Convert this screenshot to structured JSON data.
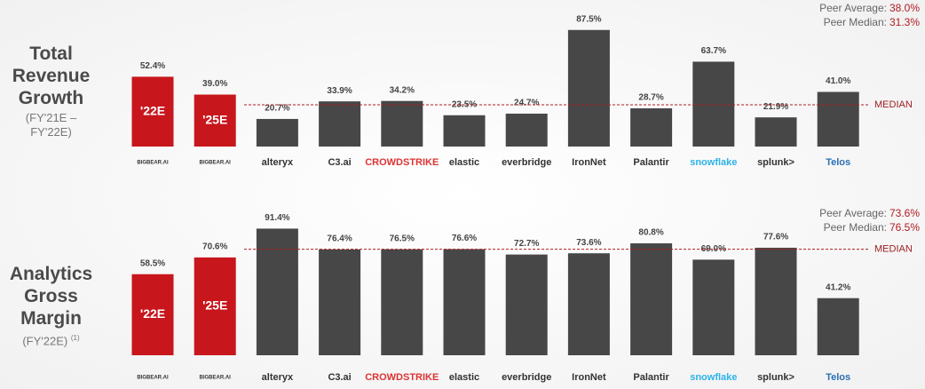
{
  "chart_data": [
    {
      "type": "bar",
      "title": "Total Revenue Growth",
      "subtitle": "(FY'21E – FY'22E)",
      "categories": [
        "BIGBEAR.AI",
        "BIGBEAR.AI",
        "alteryx",
        "C3.ai",
        "CROWDSTRIKE",
        "elastic",
        "everbridge",
        "IronNet",
        "Palantir",
        "snowflake",
        "splunk>",
        "Telos"
      ],
      "values": [
        52.4,
        39.0,
        20.7,
        33.9,
        34.2,
        23.5,
        24.7,
        87.5,
        28.7,
        63.7,
        21.9,
        41.0
      ],
      "value_labels": [
        "52.4%",
        "39.0%",
        "20.7%",
        "33.9%",
        "34.2%",
        "23.5%",
        "24.7%",
        "87.5%",
        "28.7%",
        "63.7%",
        "21.9%",
        "41.0%"
      ],
      "bar_labels": [
        "'22E",
        "'25E",
        null,
        null,
        null,
        null,
        null,
        null,
        null,
        null,
        null,
        null
      ],
      "colors": [
        "#c8161d",
        "#c8161d",
        "#474747",
        "#474747",
        "#474747",
        "#474747",
        "#474747",
        "#474747",
        "#474747",
        "#474747",
        "#474747",
        "#474747"
      ],
      "peer_average": {
        "label": "Peer Average:",
        "value": 38.0,
        "value_label": "38.0%"
      },
      "peer_median": {
        "label": "Peer Median:",
        "value": 31.3,
        "value_label": "31.3%"
      },
      "median_line_label": "MEDIAN"
    },
    {
      "type": "bar",
      "title": "Analytics Gross Margin",
      "subtitle": "(FY'22E)",
      "footnote": "(1)",
      "categories": [
        "BIGBEAR.AI",
        "BIGBEAR.AI",
        "alteryx",
        "C3.ai",
        "CROWDSTRIKE",
        "elastic",
        "everbridge",
        "IronNet",
        "Palantir",
        "snowflake",
        "splunk>",
        "Telos"
      ],
      "values": [
        58.5,
        70.6,
        91.4,
        76.4,
        76.5,
        76.6,
        72.7,
        73.6,
        80.8,
        69.0,
        77.6,
        41.2
      ],
      "value_labels": [
        "58.5%",
        "70.6%",
        "91.4%",
        "76.4%",
        "76.5%",
        "76.6%",
        "72.7%",
        "73.6%",
        "80.8%",
        "69.0%",
        "77.6%",
        "41.2%"
      ],
      "bar_labels": [
        "'22E",
        "'25E",
        null,
        null,
        null,
        null,
        null,
        null,
        null,
        null,
        null,
        null
      ],
      "colors": [
        "#c8161d",
        "#c8161d",
        "#474747",
        "#474747",
        "#474747",
        "#474747",
        "#474747",
        "#474747",
        "#474747",
        "#474747",
        "#474747",
        "#474747"
      ],
      "peer_average": {
        "label": "Peer Average:",
        "value": 73.6,
        "value_label": "73.6%"
      },
      "peer_median": {
        "label": "Peer Median:",
        "value": 76.5,
        "value_label": "76.5%"
      },
      "median_line_label": "MEDIAN"
    }
  ]
}
